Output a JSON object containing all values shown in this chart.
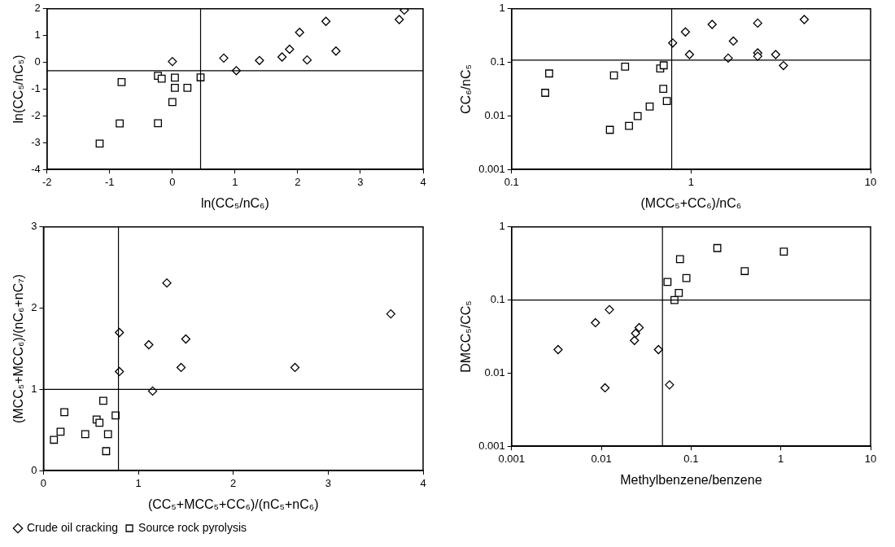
{
  "chart_data": [
    {
      "type": "scatter",
      "xlabel": "ln(CC₅/nC₆)",
      "ylabel": "ln(CC₅/nC₅)",
      "xlim": [
        -2,
        4
      ],
      "xticks": [
        -2,
        -1,
        0,
        1,
        2,
        3,
        4
      ],
      "ylim": [
        -4,
        2
      ],
      "yticks": [
        -4,
        -3,
        -2,
        -1,
        0,
        1,
        2
      ],
      "grid": false,
      "legend": false,
      "ref_lines": [
        {
          "axis": "x",
          "value": 0.45,
          "color": "#000000"
        },
        {
          "axis": "y",
          "value": -0.31,
          "color": "#000000"
        }
      ],
      "series": [
        {
          "color": "#000000",
          "marker": "diamond",
          "x": [
            0,
            0.82,
            1.02,
            1.39,
            1.75,
            1.87,
            2.03,
            2.15,
            2.45,
            2.61,
            3.62,
            3.7
          ],
          "values": [
            0.03,
            0.16,
            -0.31,
            0.07,
            0.2,
            0.49,
            1.12,
            0.09,
            1.53,
            0.42,
            1.6,
            1.95
          ]
        },
        {
          "color": "#000000",
          "marker": "square",
          "x": [
            -1.16,
            -0.84,
            -0.81,
            -0.23,
            -0.23,
            -0.17,
            0,
            0.04,
            0.04,
            0.24,
            0.45
          ],
          "values": [
            -3.03,
            -2.28,
            -0.74,
            -2.27,
            -0.5,
            -0.61,
            -1.48,
            -0.57,
            -0.95,
            -0.95,
            -0.56
          ]
        }
      ]
    },
    {
      "type": "scatter",
      "xlabel": "(MCC₅+CC₆)/nC₆",
      "ylabel": "CC₆/nC₅",
      "log": "xy",
      "xlim": [
        0.1,
        10
      ],
      "xticks": [
        0.1,
        1,
        10
      ],
      "ylim": [
        0.001,
        1
      ],
      "yticks": [
        0.001,
        0.01,
        0.1,
        1
      ],
      "grid": false,
      "legend": false,
      "ref_lines": [
        {
          "axis": "x",
          "value": 0.78,
          "color": "#000000"
        },
        {
          "axis": "y",
          "value": 0.11,
          "color": "#000000"
        }
      ],
      "series": [
        {
          "color": "#000000",
          "marker": "diamond",
          "x": [
            0.79,
            0.93,
            0.98,
            1.31,
            1.61,
            1.72,
            2.35,
            2.35,
            2.35,
            2.96,
            3.27,
            4.27
          ],
          "values": [
            0.23,
            0.37,
            0.14,
            0.51,
            0.12,
            0.25,
            0.54,
            0.15,
            0.13,
            0.14,
            0.087,
            0.63
          ]
        },
        {
          "color": "#000000",
          "marker": "square",
          "x": [
            0.154,
            0.162,
            0.353,
            0.372,
            0.429,
            0.451,
            0.504,
            0.588,
            0.673,
            0.704,
            0.7,
            0.733
          ],
          "values": [
            0.027,
            0.062,
            0.0055,
            0.057,
            0.083,
            0.0065,
            0.0099,
            0.015,
            0.077,
            0.088,
            0.032,
            0.019
          ]
        }
      ]
    },
    {
      "type": "scatter",
      "xlabel": "(CC₅+MCC₅+CC₆)/(nC₅+nC₆)",
      "ylabel": "(MCC₅+MCC₆)/(nC₆+nC₇)",
      "xlim": [
        0,
        4
      ],
      "xticks": [
        0,
        1,
        2,
        3,
        4
      ],
      "ylim": [
        0,
        3
      ],
      "yticks": [
        0,
        1,
        2,
        3
      ],
      "grid": false,
      "legend": "bottom",
      "ref_lines": [
        {
          "axis": "x",
          "value": 0.79,
          "color": "#000000"
        },
        {
          "axis": "y",
          "value": 1,
          "color": "#000000"
        }
      ],
      "series": [
        {
          "name": "Crude oil cracking",
          "color": "#000000",
          "marker": "diamond",
          "x": [
            0.8,
            0.8,
            1.11,
            1.15,
            1.3,
            1.45,
            1.5,
            2.65,
            3.66
          ],
          "values": [
            1.7,
            1.22,
            1.55,
            0.98,
            2.31,
            1.27,
            1.62,
            1.27,
            1.93
          ]
        },
        {
          "name": "Source rock pyrolysis",
          "color": "#000000",
          "marker": "square",
          "x": [
            0.11,
            0.18,
            0.22,
            0.44,
            0.56,
            0.59,
            0.63,
            0.68,
            0.66,
            0.76
          ],
          "values": [
            0.38,
            0.48,
            0.72,
            0.45,
            0.63,
            0.59,
            0.86,
            0.45,
            0.24,
            0.68
          ]
        }
      ]
    },
    {
      "type": "scatter",
      "xlabel": "Methylbenzene/benzene",
      "ylabel": "DMCC₅/CC₅",
      "log": "xy",
      "xlim": [
        0.001,
        10
      ],
      "xticks": [
        0.001,
        0.01,
        0.1,
        1,
        10
      ],
      "ylim": [
        0.001,
        1
      ],
      "yticks": [
        0.001,
        0.01,
        0.1,
        1
      ],
      "grid": false,
      "legend": false,
      "ref_lines": [
        {
          "axis": "x",
          "value": 0.048,
          "color": "#000000"
        },
        {
          "axis": "y",
          "value": 0.1,
          "color": "#000000"
        }
      ],
      "series": [
        {
          "color": "#000000",
          "marker": "diamond",
          "x": [
            0.0033,
            0.0086,
            0.011,
            0.0123,
            0.0234,
            0.0241,
            0.0264,
            0.0433,
            0.0575
          ],
          "values": [
            0.021,
            0.049,
            0.0063,
            0.074,
            0.028,
            0.035,
            0.042,
            0.021,
            0.0069
          ]
        },
        {
          "color": "#000000",
          "marker": "square",
          "x": [
            0.0546,
            0.0653,
            0.073,
            0.0753,
            0.0887,
            0.196,
            0.396,
            1.08
          ],
          "values": [
            0.177,
            0.1,
            0.125,
            0.363,
            0.2,
            0.514,
            0.249,
            0.459
          ]
        }
      ]
    }
  ]
}
